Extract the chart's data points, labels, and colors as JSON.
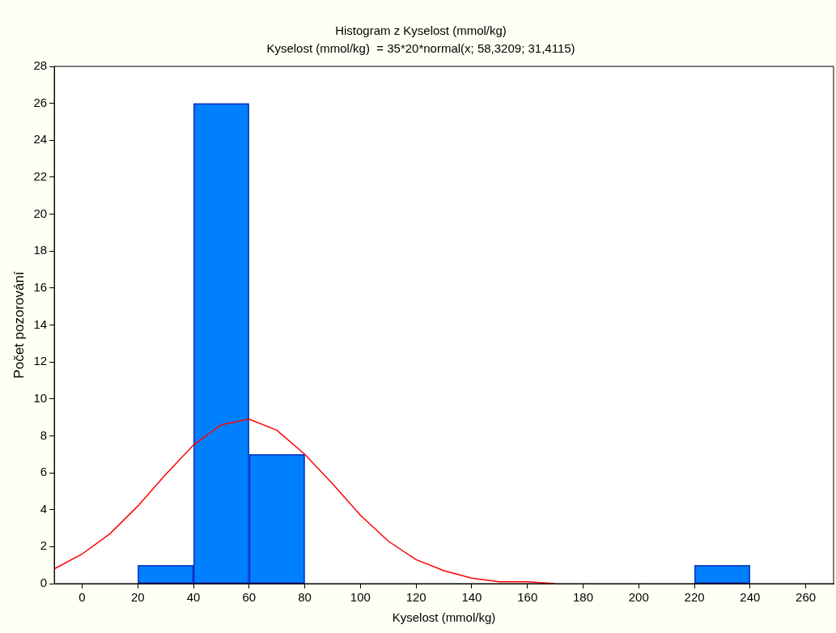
{
  "chart_data": {
    "type": "histogram",
    "title": "Histogram z Kyselost (mmol/kg)",
    "subtitle": "Kyselost (mmol/kg)  = 35*20*normal(x; 58,3209; 31,4115)",
    "xlabel": "Kyselost (mmol/kg)",
    "ylabel": "Počet pozorování",
    "bins": [
      20,
      40,
      60,
      80,
      100,
      120,
      140,
      160,
      180,
      200,
      220,
      240
    ],
    "values": [
      1,
      26,
      7,
      0,
      0,
      0,
      0,
      0,
      0,
      0,
      1
    ],
    "color": "#0080ff",
    "series": [
      {
        "type": "line",
        "color": "#ff0000",
        "x": [
          -10,
          0,
          10,
          20,
          30,
          40,
          50,
          60,
          70,
          80,
          90,
          100,
          110,
          120,
          130,
          140,
          150,
          160,
          170
        ],
        "values": [
          0.8,
          1.6,
          2.7,
          4.2,
          5.9,
          7.5,
          8.6,
          8.9,
          8.3,
          7.0,
          5.4,
          3.7,
          2.3,
          1.3,
          0.7,
          0.3,
          0.1,
          0.1,
          0
        ]
      }
    ],
    "xlim": [
      -10,
      270
    ],
    "xticks": [
      0,
      20,
      40,
      60,
      80,
      100,
      120,
      140,
      160,
      180,
      200,
      220,
      240,
      260
    ],
    "ylim": [
      0,
      28
    ],
    "yticks": [
      0,
      2,
      4,
      6,
      8,
      10,
      12,
      14,
      16,
      18,
      20,
      22,
      24,
      26,
      28
    ],
    "grid": false,
    "legend": false
  }
}
